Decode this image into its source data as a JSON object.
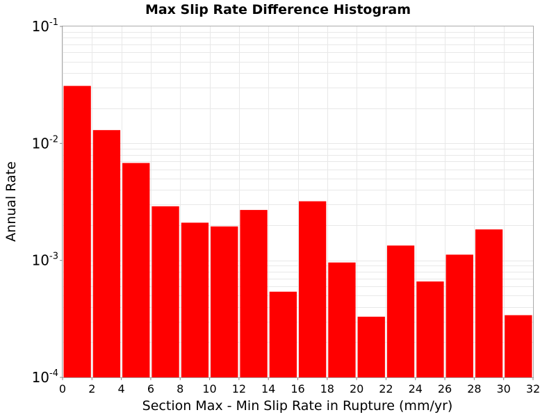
{
  "chart_data": {
    "type": "bar",
    "title": "Max Slip Rate Difference Histogram",
    "xlabel": "Section Max - Min Slip Rate in Rupture (mm/yr)",
    "ylabel": "Annual Rate",
    "xlim": [
      0,
      32
    ],
    "ylim": [
      0.0001,
      0.1
    ],
    "yscale": "log",
    "grid": true,
    "bar_color": "#ff0000",
    "bin_width": 2,
    "x": [
      1,
      3,
      5,
      7,
      9,
      11,
      13,
      15,
      17,
      19,
      21,
      23,
      25,
      27,
      29,
      31
    ],
    "values": [
      0.031,
      0.013,
      0.0068,
      0.0029,
      0.0021,
      0.00195,
      0.0027,
      0.00054,
      0.0032,
      0.00096,
      0.00033,
      0.00134,
      0.00066,
      0.00112,
      0.00184,
      0.00034
    ],
    "xticks": [
      "0",
      "2",
      "4",
      "6",
      "8",
      "10",
      "12",
      "14",
      "16",
      "18",
      "20",
      "22",
      "24",
      "26",
      "28",
      "30",
      "32"
    ],
    "yticks": [
      {
        "base": "10",
        "exp": "-4",
        "value": 0.0001
      },
      {
        "base": "10",
        "exp": "-3",
        "value": 0.001
      },
      {
        "base": "10",
        "exp": "-2",
        "value": 0.01
      },
      {
        "base": "10",
        "exp": "-1",
        "value": 0.1
      }
    ]
  }
}
